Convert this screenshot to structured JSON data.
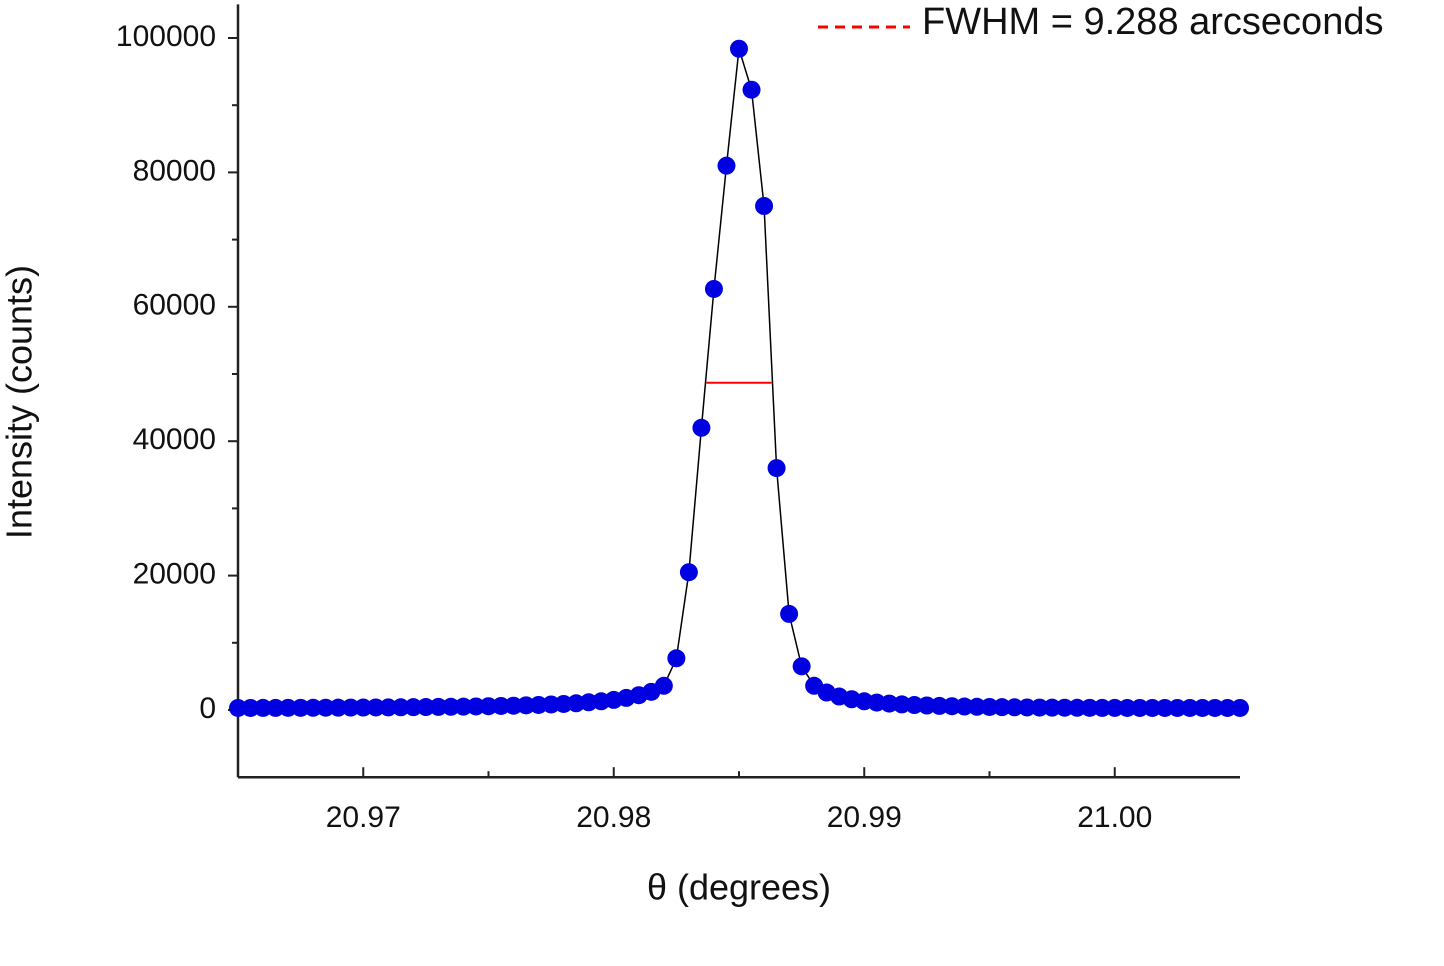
{
  "chart_data": {
    "type": "scatter",
    "x_label": "θ (degrees)",
    "y_label": "Intensity (counts)",
    "x": [
      20.965,
      20.9655,
      20.966,
      20.9665,
      20.967,
      20.9675,
      20.968,
      20.9685,
      20.969,
      20.9695,
      20.97,
      20.9705,
      20.971,
      20.9715,
      20.972,
      20.9725,
      20.973,
      20.9735,
      20.974,
      20.9745,
      20.975,
      20.9755,
      20.976,
      20.9765,
      20.977,
      20.9775,
      20.978,
      20.9785,
      20.979,
      20.9795,
      20.98,
      20.9805,
      20.981,
      20.9815,
      20.982,
      20.9825,
      20.983,
      20.9835,
      20.984,
      20.9845,
      20.985,
      20.9855,
      20.986,
      20.9865,
      20.987,
      20.9875,
      20.988,
      20.9885,
      20.989,
      20.9895,
      20.99,
      20.9905,
      20.991,
      20.9915,
      20.992,
      20.9925,
      20.993,
      20.9935,
      20.994,
      20.9945,
      20.995,
      20.9955,
      20.996,
      20.9965,
      20.997,
      20.9975,
      20.998,
      20.9985,
      20.999,
      20.9995,
      21.0,
      21.0005,
      21.001,
      21.0015,
      21.002,
      21.0025,
      21.003,
      21.0035,
      21.004,
      21.0045,
      21.005
    ],
    "series": [
      {
        "color": "#0000e0",
        "line_color": "#000000",
        "values": [
          300,
          300,
          310,
          310,
          320,
          320,
          330,
          340,
          350,
          360,
          370,
          380,
          390,
          400,
          420,
          440,
          460,
          480,
          500,
          530,
          560,
          600,
          640,
          690,
          750,
          820,
          900,
          1000,
          1150,
          1300,
          1500,
          1800,
          2200,
          2700,
          3600,
          7700,
          20500,
          42000,
          62650,
          81000,
          98400,
          92300,
          75000,
          36000,
          14300,
          6500,
          3600,
          2600,
          2000,
          1600,
          1300,
          1100,
          950,
          830,
          740,
          670,
          610,
          560,
          520,
          480,
          450,
          420,
          400,
          380,
          360,
          350,
          340,
          330,
          320,
          315,
          310,
          305,
          300,
          300,
          300,
          300,
          300,
          300,
          300,
          300,
          300
        ]
      }
    ],
    "fwhm": {
      "label": "FWHM = 9.288 arcseconds",
      "color": "#ff0000",
      "x": [
        20.9837,
        20.9863
      ],
      "y": 48700
    },
    "xlim": [
      20.965,
      21.005
    ],
    "xticks": [
      20.97,
      20.98,
      20.99,
      {
        "value": 21.0,
        "label": "21.00"
      }
    ],
    "ylim": [
      -10000,
      105000
    ],
    "yticks": [
      0,
      20000,
      40000,
      60000,
      80000,
      100000
    ]
  }
}
